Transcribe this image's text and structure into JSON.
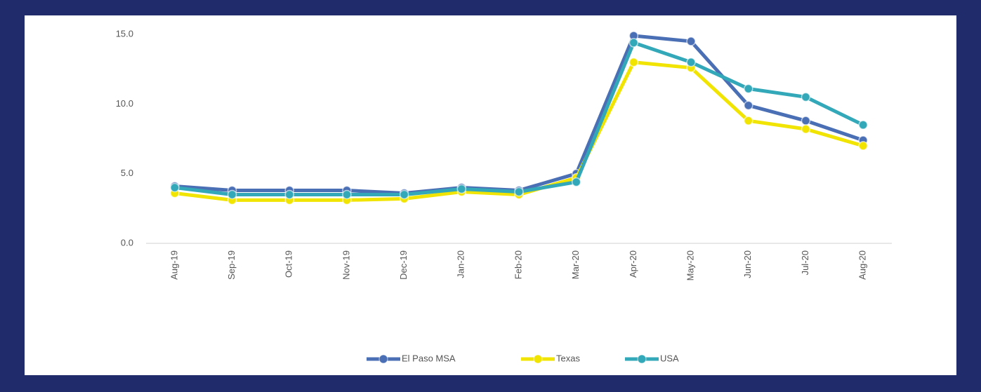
{
  "chart_data": {
    "type": "line",
    "categories": [
      "Aug-19",
      "Sep-19",
      "Oct-19",
      "Nov-19",
      "Dec-19",
      "Jan-20",
      "Feb-20",
      "Mar-20",
      "Apr-20",
      "May-20",
      "Jun-20",
      "Jul-20",
      "Aug-20"
    ],
    "series": [
      {
        "name": "El Paso MSA",
        "color": "#4a6fb5",
        "values": [
          4.1,
          3.8,
          3.8,
          3.8,
          3.6,
          4.0,
          3.8,
          5.0,
          14.9,
          14.5,
          9.9,
          8.8,
          7.4
        ]
      },
      {
        "name": "Texas",
        "color": "#f0e400",
        "values": [
          3.6,
          3.1,
          3.1,
          3.1,
          3.2,
          3.7,
          3.5,
          4.7,
          13.0,
          12.6,
          8.8,
          8.2,
          7.0
        ]
      },
      {
        "name": "USA",
        "color": "#33a8b8",
        "values": [
          4.0,
          3.5,
          3.5,
          3.5,
          3.5,
          3.9,
          3.7,
          4.4,
          14.4,
          13.0,
          11.1,
          10.5,
          8.5
        ]
      }
    ],
    "ylim": [
      0,
      15
    ],
    "yticks": [
      {
        "value": 0,
        "label": "0.0"
      },
      {
        "value": 5,
        "label": "5.0"
      },
      {
        "value": 10,
        "label": "10.0"
      },
      {
        "value": 15,
        "label": "15.0"
      }
    ],
    "grid": false,
    "legend": "bottom"
  }
}
